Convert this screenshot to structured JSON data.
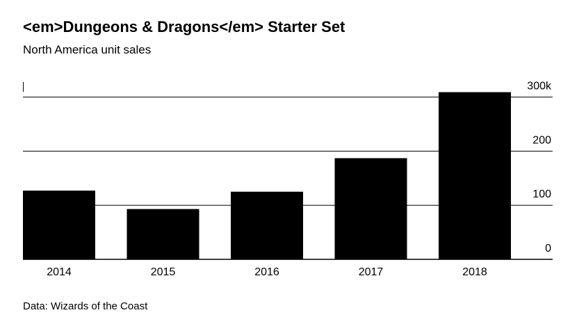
{
  "chart_data": {
    "type": "bar",
    "title": "<em>Dungeons & Dragons</em> Starter Set",
    "subtitle": "North America unit sales",
    "source": "Data: Wizards of the Coast",
    "categories": [
      "2014",
      "2015",
      "2016",
      "2017",
      "2018"
    ],
    "values": [
      127,
      93,
      125,
      187,
      309
    ],
    "color": "#000000",
    "ylim": [
      0,
      320
    ],
    "yticks": [
      0,
      100,
      200,
      {
        "value": 300,
        "label": "300k"
      }
    ],
    "grid": true
  }
}
